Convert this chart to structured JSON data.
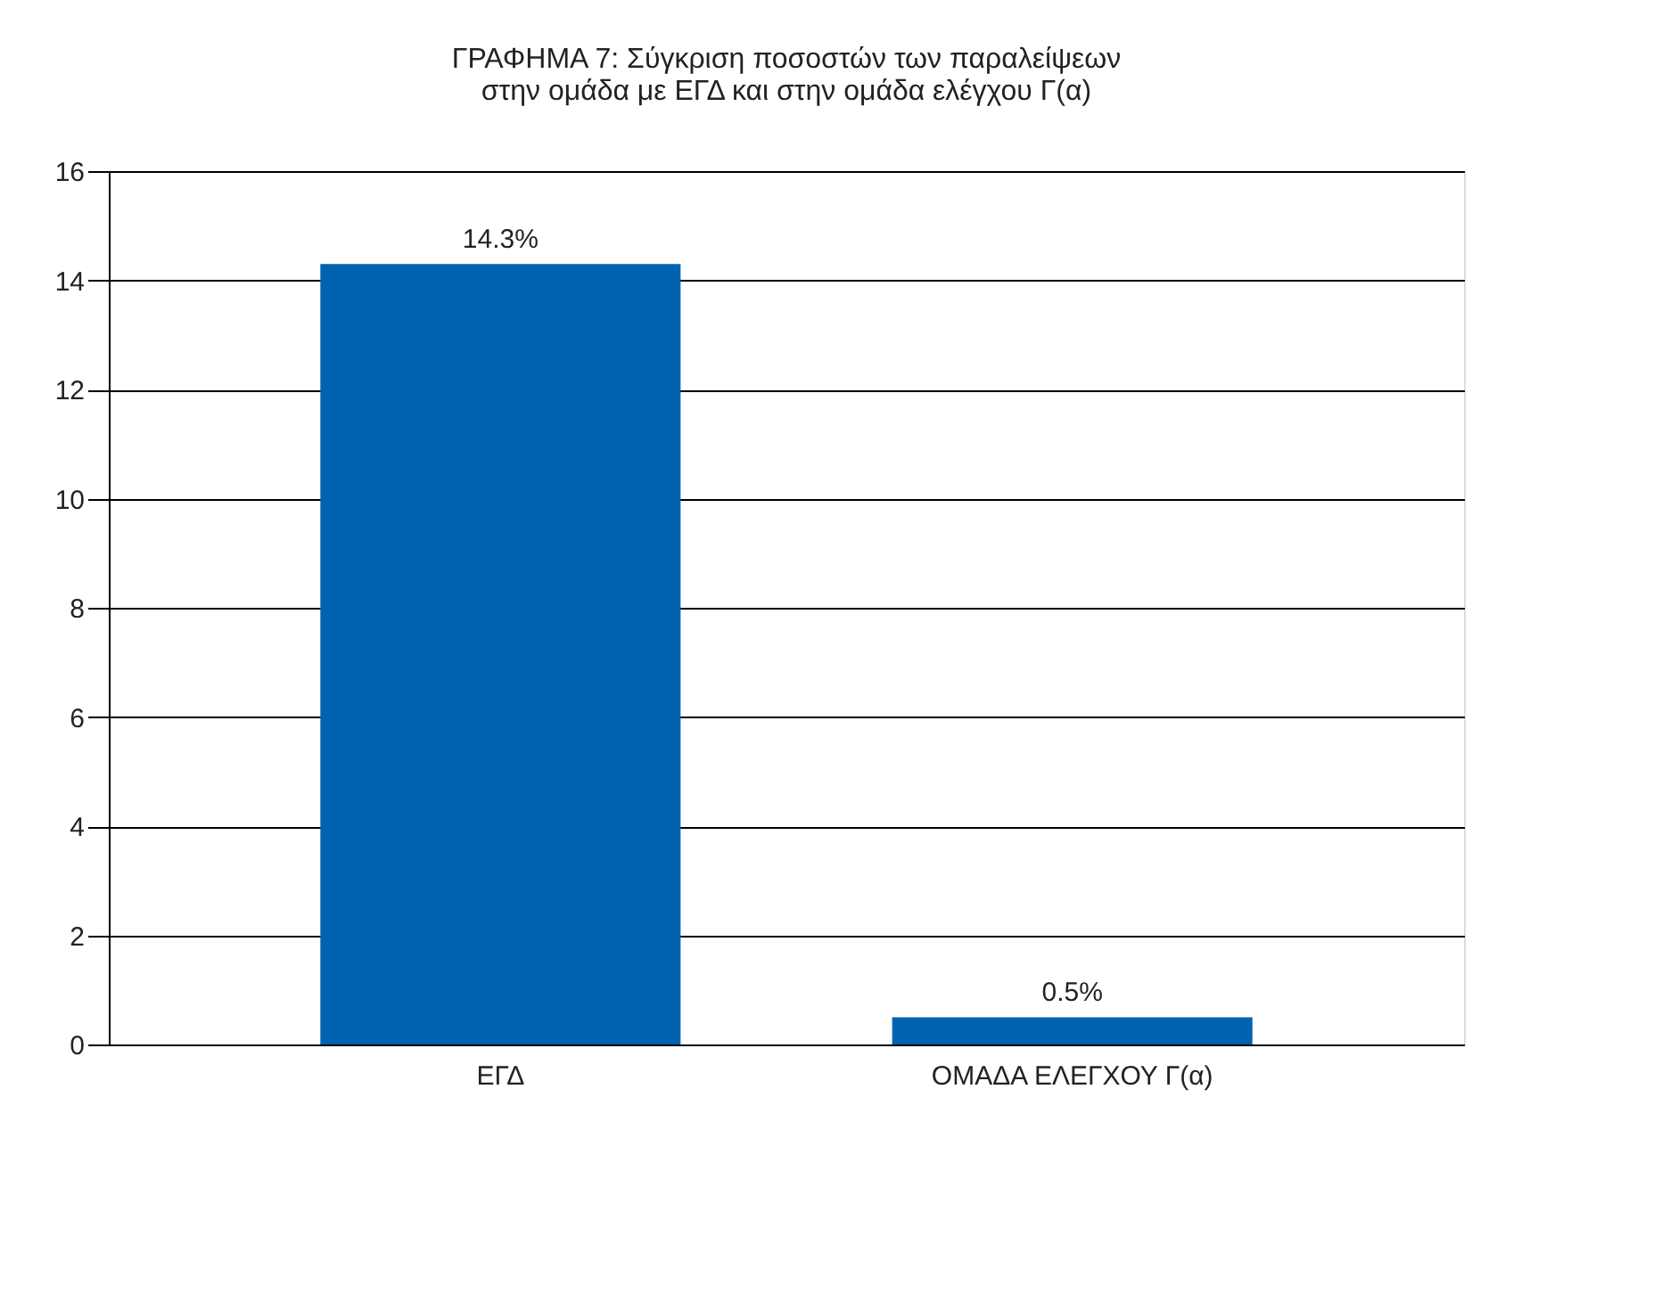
{
  "chart_data": {
    "type": "bar",
    "title": "ΓΡΑΦΗΜΑ 7: Σύγκριση ποσοστών των παραλείψεων\nστην ομάδα με ΕΓΔ και στην ομάδα ελέγχου Γ(α)",
    "categories": [
      "ΕΓΔ",
      "ΟΜΑΔΑ ΕΛΕΓΧΟΥ Γ(α)"
    ],
    "values": [
      14.3,
      0.5
    ],
    "value_labels": [
      "14.3%",
      "0.5%"
    ],
    "color": "#0063b1",
    "ylim": [
      0,
      16
    ],
    "yticks": [
      0,
      2,
      4,
      6,
      8,
      10,
      12,
      14,
      16
    ],
    "grid": "y"
  }
}
